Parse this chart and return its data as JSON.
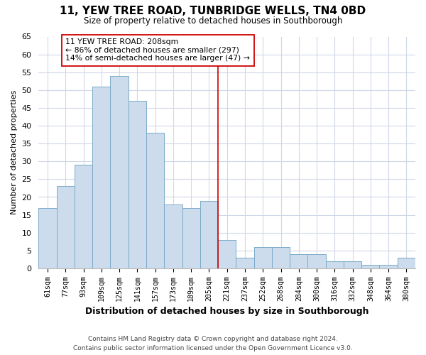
{
  "title": "11, YEW TREE ROAD, TUNBRIDGE WELLS, TN4 0BD",
  "subtitle": "Size of property relative to detached houses in Southborough",
  "xlabel": "Distribution of detached houses by size in Southborough",
  "ylabel": "Number of detached properties",
  "bin_labels": [
    "61sqm",
    "77sqm",
    "93sqm",
    "109sqm",
    "125sqm",
    "141sqm",
    "157sqm",
    "173sqm",
    "189sqm",
    "205sqm",
    "221sqm",
    "237sqm",
    "252sqm",
    "268sqm",
    "284sqm",
    "300sqm",
    "316sqm",
    "332sqm",
    "348sqm",
    "364sqm",
    "380sqm"
  ],
  "bar_values": [
    17,
    23,
    29,
    51,
    54,
    47,
    38,
    18,
    17,
    19,
    8,
    3,
    6,
    6,
    4,
    4,
    2,
    2,
    1,
    1,
    3
  ],
  "bar_color": "#ccdcec",
  "bar_edge_color": "#7aaac8",
  "vline_x": 9.5,
  "vline_color": "#cc0000",
  "annotation_text": "11 YEW TREE ROAD: 208sqm\n← 86% of detached houses are smaller (297)\n14% of semi-detached houses are larger (47) →",
  "annotation_box_color": "#ffffff",
  "annotation_box_edge_color": "#cc0000",
  "ylim": [
    0,
    65
  ],
  "yticks": [
    0,
    5,
    10,
    15,
    20,
    25,
    30,
    35,
    40,
    45,
    50,
    55,
    60,
    65
  ],
  "footer_line1": "Contains HM Land Registry data © Crown copyright and database right 2024.",
  "footer_line2": "Contains public sector information licensed under the Open Government Licence v3.0.",
  "bg_color": "#ffffff",
  "plot_bg_color": "#ffffff",
  "grid_color": "#d0d8e8"
}
